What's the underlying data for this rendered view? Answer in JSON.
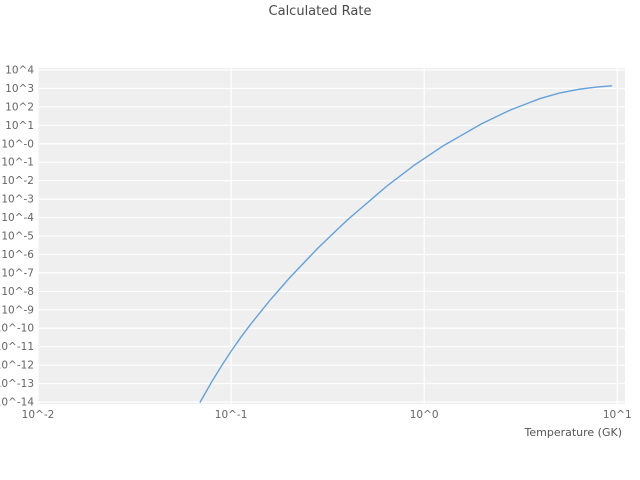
{
  "title": "Calculated Rate",
  "xlabel": "Temperature (GK)",
  "colors": {
    "line": "#64a1dc",
    "plot_bg": "#efefef",
    "grid": "#ffffff",
    "tick_text": "#666666",
    "title_text": "#4a4a4a",
    "figure_bg": "#ffffff"
  },
  "chart_data": {
    "type": "line",
    "title": "Calculated Rate",
    "xlabel": "Temperature (GK)",
    "ylabel": "",
    "x_scale": "log",
    "y_scale": "log",
    "grid": true,
    "legend": false,
    "xlim_log": [
      -2,
      1.04
    ],
    "ylim_log": [
      -14,
      4
    ],
    "x_tick_labels": [
      "10^-2",
      "10^-1",
      "10^0",
      "10^1"
    ],
    "x_tick_exponents": [
      -2,
      -1,
      0,
      1
    ],
    "y_tick_labels": [
      "10^4",
      "10^3",
      "10^2",
      "10^1",
      "10^-0",
      "10^-1",
      "10^-2",
      "10^-3",
      "10^-4",
      "10^-5",
      "10^-6",
      "10^-7",
      "10^-8",
      "10^-9",
      "10^-10",
      "10^-11",
      "10^-12",
      "10^-13",
      "10^-14"
    ],
    "y_tick_exponents": [
      4,
      3,
      2,
      1,
      0,
      -1,
      -2,
      -3,
      -4,
      -5,
      -6,
      -7,
      -8,
      -9,
      -10,
      -11,
      -12,
      -13,
      -14
    ],
    "series": [
      {
        "name": "calculated-rate",
        "log_points": [
          [
            -1.16,
            -14.0
          ],
          [
            -1.1,
            -12.9
          ],
          [
            -1.05,
            -12.05
          ],
          [
            -1.0,
            -11.25
          ],
          [
            -0.95,
            -10.5
          ],
          [
            -0.9,
            -9.8
          ],
          [
            -0.85,
            -9.15
          ],
          [
            -0.8,
            -8.5
          ],
          [
            -0.75,
            -7.9
          ],
          [
            -0.7,
            -7.3
          ],
          [
            -0.65,
            -6.75
          ],
          [
            -0.6,
            -6.2
          ],
          [
            -0.55,
            -5.65
          ],
          [
            -0.5,
            -5.15
          ],
          [
            -0.45,
            -4.65
          ],
          [
            -0.4,
            -4.15
          ],
          [
            -0.35,
            -3.7
          ],
          [
            -0.3,
            -3.25
          ],
          [
            -0.25,
            -2.8
          ],
          [
            -0.2,
            -2.35
          ],
          [
            -0.15,
            -1.95
          ],
          [
            -0.1,
            -1.55
          ],
          [
            -0.05,
            -1.15
          ],
          [
            0.0,
            -0.8
          ],
          [
            0.05,
            -0.45
          ],
          [
            0.1,
            -0.1
          ],
          [
            0.15,
            0.2
          ],
          [
            0.2,
            0.5
          ],
          [
            0.25,
            0.8
          ],
          [
            0.3,
            1.1
          ],
          [
            0.35,
            1.35
          ],
          [
            0.4,
            1.6
          ],
          [
            0.45,
            1.85
          ],
          [
            0.5,
            2.05
          ],
          [
            0.55,
            2.25
          ],
          [
            0.6,
            2.45
          ],
          [
            0.65,
            2.6
          ],
          [
            0.7,
            2.75
          ],
          [
            0.75,
            2.85
          ],
          [
            0.8,
            2.95
          ],
          [
            0.85,
            3.02
          ],
          [
            0.9,
            3.08
          ],
          [
            0.95,
            3.12
          ],
          [
            0.97,
            3.14
          ]
        ]
      }
    ]
  }
}
